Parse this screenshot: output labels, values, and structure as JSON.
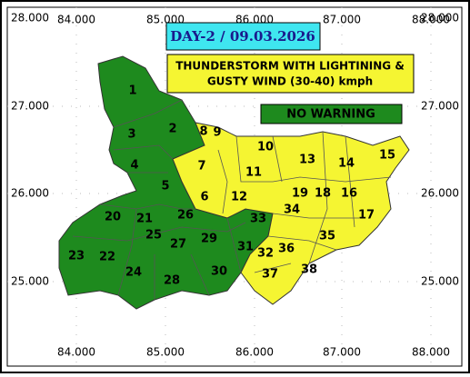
{
  "title": "DAY-2 / 09.03.2026",
  "legend": {
    "warning": [
      "THUNDERSTORM WITH LIGHTINING  &",
      "GUSTY WIND (30-40) kmph"
    ],
    "no_warning": "NO WARNING"
  },
  "axes": {
    "top": [
      "84.000",
      "85.000",
      "86.000",
      "87.000",
      "88.000"
    ],
    "bottom": [
      "84.000",
      "85.000",
      "86.000",
      "87.000",
      "88.000"
    ],
    "left": [
      "28.000",
      "27.000",
      "26.000",
      "25.000"
    ],
    "right": [
      "28.000",
      "27.000",
      "26.000",
      "25.000"
    ]
  },
  "districts": [
    "1",
    "2",
    "3",
    "4",
    "5",
    "6",
    "7",
    "8",
    "9",
    "10",
    "11",
    "12",
    "13",
    "14",
    "15",
    "16",
    "17",
    "18",
    "19",
    "20",
    "21",
    "22",
    "23",
    "24",
    "25",
    "26",
    "27",
    "28",
    "29",
    "30",
    "31",
    "32",
    "33",
    "34",
    "35",
    "36",
    "37",
    "38"
  ]
}
